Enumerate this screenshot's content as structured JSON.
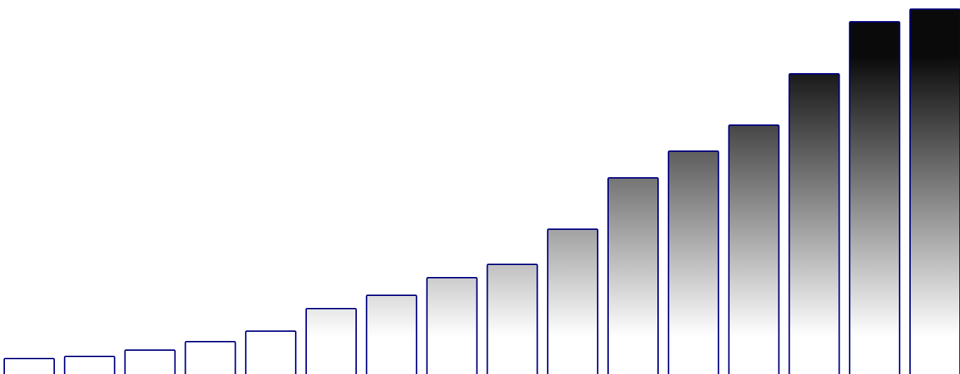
{
  "chart_data": {
    "type": "bar",
    "values": [
      22,
      25,
      34,
      46,
      61,
      93,
      112,
      137,
      156,
      206,
      279,
      317,
      354,
      427,
      501,
      519
    ],
    "color": "#0a0a0a",
    "edgecolor": "#000080",
    "ylim": [
      0,
      532
    ]
  }
}
